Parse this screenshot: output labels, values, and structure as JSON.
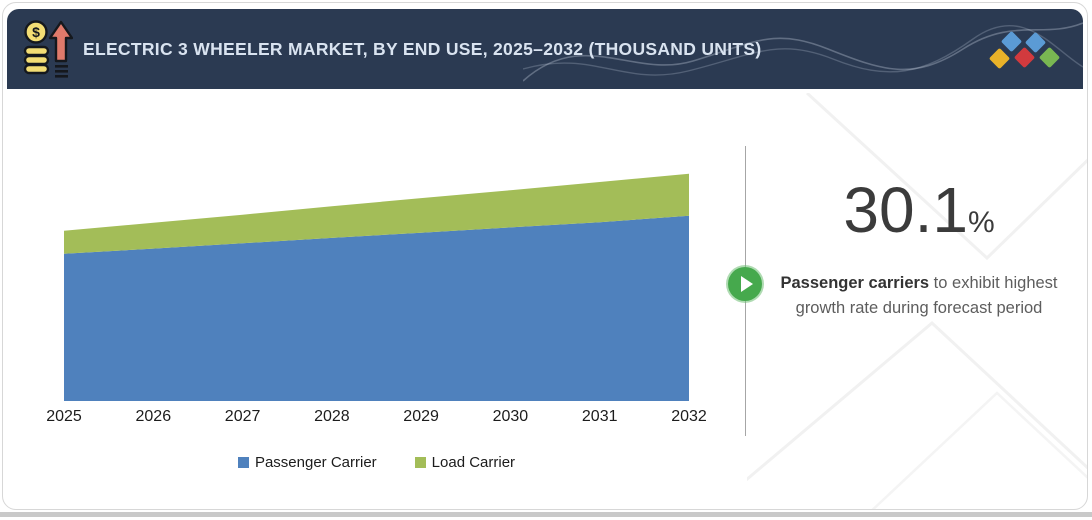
{
  "header": {
    "title": "ELECTRIC 3 WHEELER MARKET, BY END USE, 2025–2032 (THOUSAND UNITS)",
    "icon": "money-growth-icon",
    "background_color": "#2b3a52",
    "logo_diamond_colors": [
      "#e9b229",
      "#5b9bd5",
      "#d23a3e",
      "#5b9bd5",
      "#79b752"
    ]
  },
  "chart_data": {
    "type": "area",
    "stacked": true,
    "title": "Electric 3 Wheeler Market, by End Use, 2025–2032 (Thousand Units)",
    "x": [
      2025,
      2026,
      2027,
      2028,
      2029,
      2030,
      2031,
      2032
    ],
    "series": [
      {
        "name": "Passenger Carrier",
        "color": "#4f81bd",
        "values": [
          64.8,
          67.1,
          69.4,
          71.8,
          74.1,
          76.4,
          78.7,
          81.5
        ]
      },
      {
        "name": "Load Carrier",
        "color": "#a3bd58",
        "values": [
          10.1,
          11.4,
          12.6,
          13.9,
          15.2,
          16.4,
          17.7,
          18.5
        ]
      }
    ],
    "xlabel": "",
    "ylabel": "",
    "y_axis_shown": false,
    "values_note": "no y-axis in figure; values are estimated relative units, max stacked total (2032) = 100",
    "ylim": [
      0,
      114
    ],
    "grid": false,
    "legend_position": "bottom"
  },
  "callout": {
    "stat_value": "30.1",
    "stat_unit": "%",
    "description_bold": "Passenger carriers",
    "description_rest": " to exhibit highest growth rate during forecast period",
    "play_icon_color": "#46a94d"
  }
}
